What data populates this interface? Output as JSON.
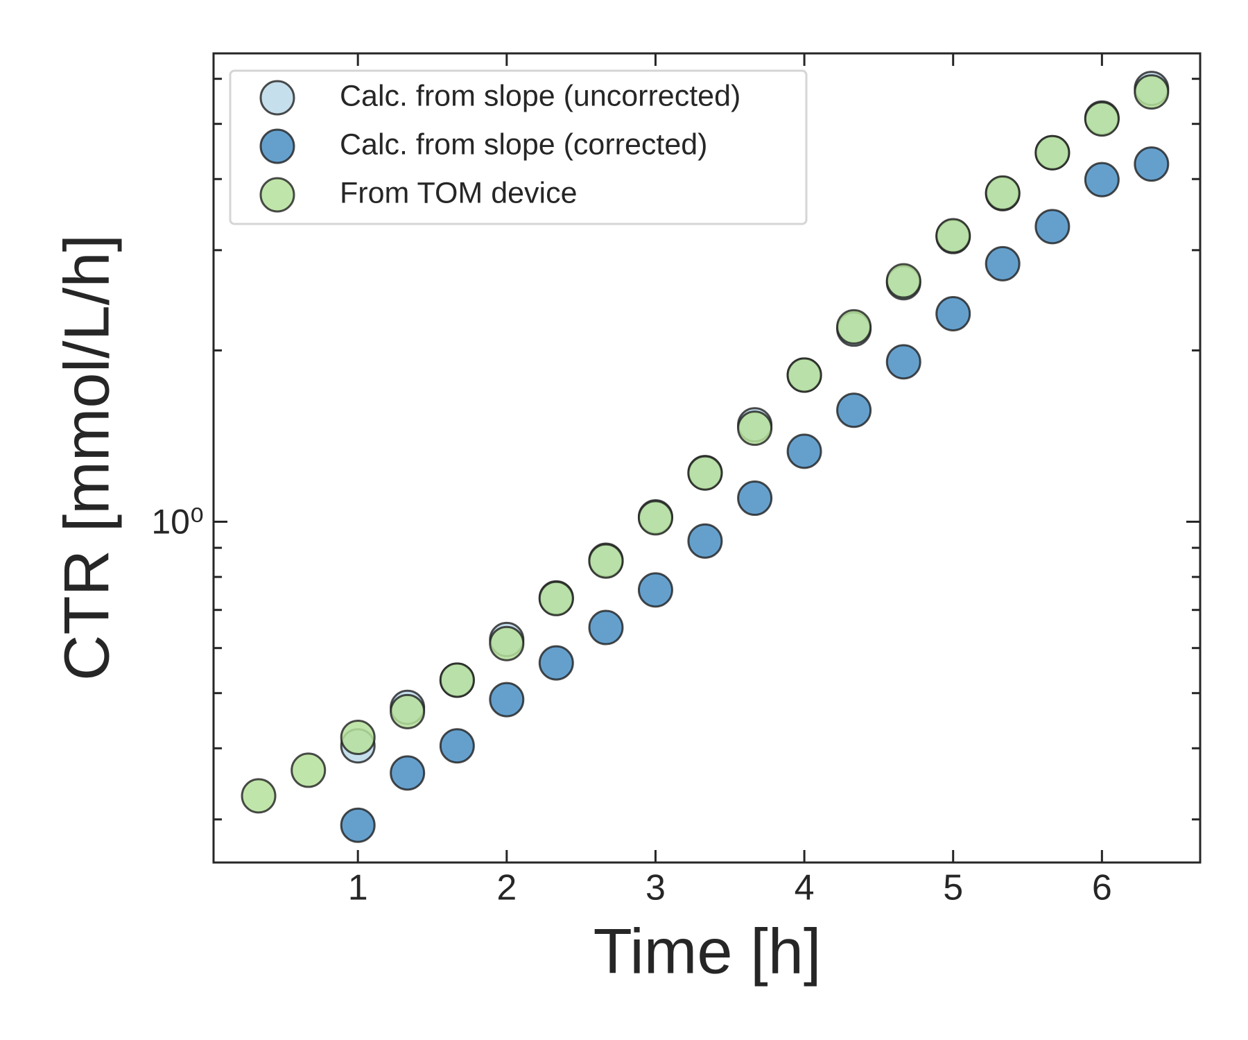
{
  "chart_data": {
    "type": "scatter",
    "x_label": "Time [h]",
    "y_label": "CTR [mmol/L/h]",
    "yscale": "log",
    "legend": "upper left",
    "xlim": [
      0.03,
      6.66
    ],
    "xticks": [
      1,
      2,
      3,
      4,
      5,
      6
    ],
    "ylim": [
      0.252,
      6.65
    ],
    "yticks": [
      {
        "value": 1,
        "label": "10⁰"
      }
    ],
    "yminorticks": [
      0.3,
      0.4,
      0.5,
      0.6,
      0.7,
      0.8,
      0.9,
      2,
      3,
      4,
      5,
      6
    ],
    "series": [
      {
        "name": "Calc. from slope (uncorrected)",
        "color": "#bcd9ea",
        "x": [
          1.0,
          1.333,
          1.667,
          2.0,
          2.333,
          2.667,
          3.0,
          3.333,
          3.667,
          4.0,
          4.333,
          4.667,
          5.0,
          5.333,
          5.667,
          6.0,
          6.333
        ],
        "values": [
          0.404,
          0.472,
          0.527,
          0.621,
          0.735,
          0.856,
          1.02,
          1.22,
          1.48,
          1.81,
          2.18,
          2.63,
          3.17,
          3.77,
          4.45,
          5.12,
          5.77
        ]
      },
      {
        "name": "Calc. from slope (corrected)",
        "color": "#4a8fc4",
        "x": [
          1.0,
          1.333,
          1.667,
          2.0,
          2.333,
          2.667,
          3.0,
          3.333,
          3.667,
          4.0,
          4.333,
          4.667,
          5.0,
          5.333,
          5.667,
          6.0,
          6.333
        ],
        "values": [
          0.293,
          0.362,
          0.404,
          0.487,
          0.565,
          0.652,
          0.759,
          0.925,
          1.1,
          1.33,
          1.57,
          1.91,
          2.32,
          2.84,
          3.3,
          3.99,
          4.25
        ]
      },
      {
        "name": "From TOM device",
        "color": "#b5e09b",
        "x": [
          0.333,
          0.667,
          1.0,
          1.333,
          1.667,
          2.0,
          2.333,
          2.667,
          3.0,
          3.333,
          3.667,
          4.0,
          4.333,
          4.667,
          5.0,
          5.333,
          5.667,
          6.0,
          6.333
        ],
        "values": [
          0.33,
          0.366,
          0.418,
          0.464,
          0.527,
          0.611,
          0.733,
          0.853,
          1.016,
          1.218,
          1.46,
          1.81,
          2.2,
          2.65,
          3.18,
          3.78,
          4.45,
          5.1,
          5.69
        ]
      }
    ]
  }
}
